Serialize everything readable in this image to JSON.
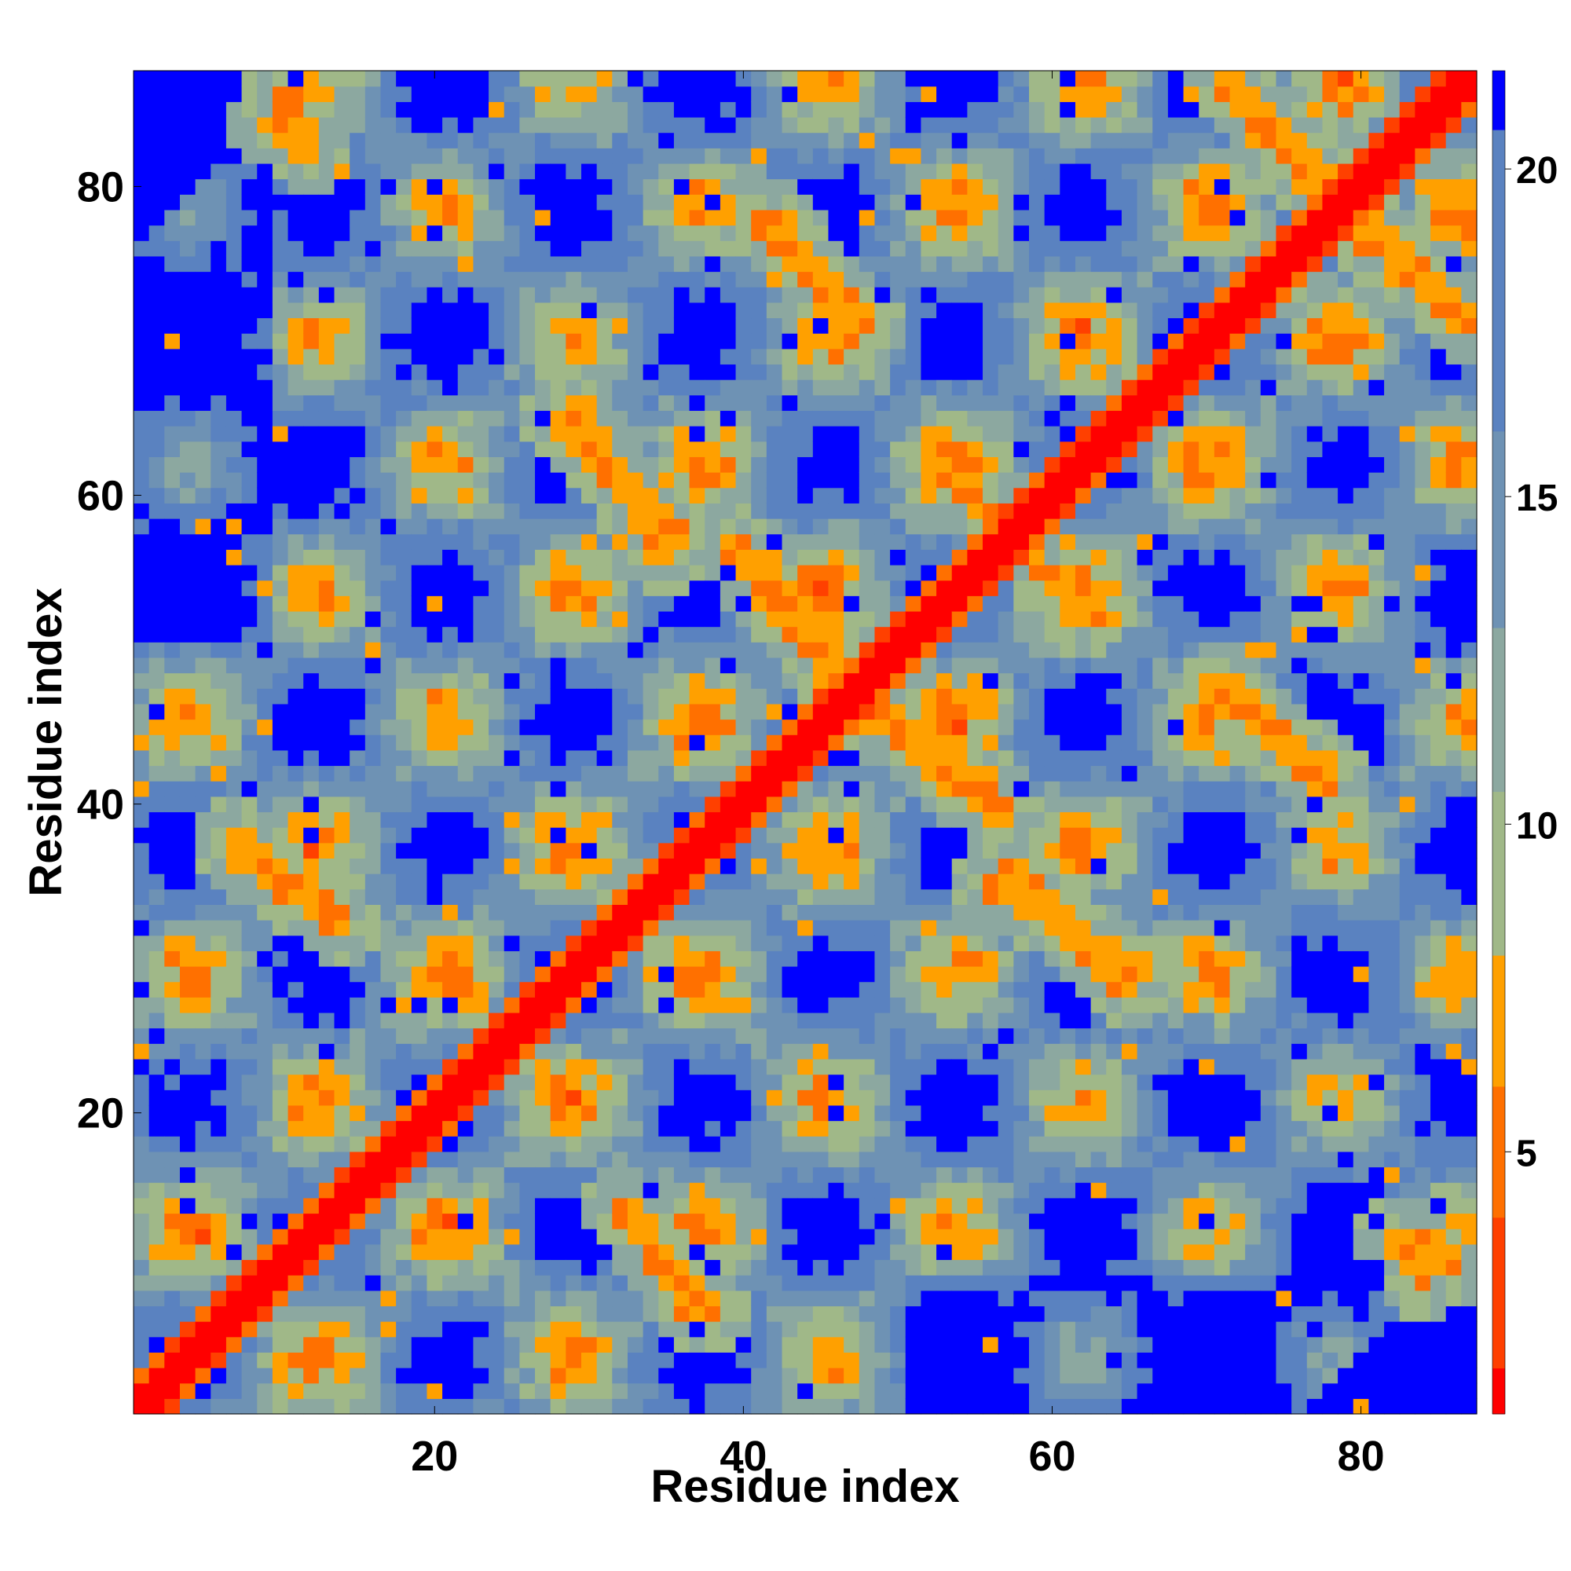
{
  "chart_data": {
    "type": "heatmap",
    "title": "",
    "xlabel": "Residue index",
    "ylabel": "Residue index",
    "n_residues": 87,
    "x_range": [
      1,
      87
    ],
    "y_range": [
      1,
      87
    ],
    "x_ticks": [
      20,
      40,
      60,
      80
    ],
    "y_ticks": [
      20,
      40,
      60,
      80
    ],
    "colorbar": {
      "ticks": [
        5,
        10,
        15,
        20
      ],
      "range": [
        1,
        21.5
      ],
      "colors": [
        "#ff0000",
        "#ff4000",
        "#ff7000",
        "#ffa000",
        "#a0b888",
        "#8ca8a0",
        "#6e92b4",
        "#5a82c0",
        "#0000ff"
      ]
    },
    "background_value": 21,
    "diagonal_value": 1,
    "structure_description": "Contact/distance map: red main diagonal; orange off-diagonal contact stripes; blue (>20) domain-separated regions; green/steel-blue intermediate distances",
    "contact_segments": [
      {
        "from": [
          3,
          0
        ],
        "to": [
          0,
          0
        ],
        "v": 0
      },
      {
        "from": [
          29,
          66
        ],
        "to": [
          35,
          56
        ],
        "v": 6
      },
      {
        "from": [
          33,
          13
        ],
        "to": [
          37,
          7
        ],
        "v": 6
      },
      {
        "from": [
          42,
          78
        ],
        "to": [
          47,
          71
        ],
        "v": 6
      },
      {
        "from": [
          41,
          56
        ],
        "to": [
          47,
          48
        ],
        "v": 6
      },
      {
        "from": [
          48,
          46
        ],
        "to": [
          57,
          39
        ],
        "v": 6
      },
      {
        "from": [
          57,
          36
        ],
        "to": [
          65,
          28
        ],
        "v": 6
      },
      {
        "from": [
          71,
          48
        ],
        "to": [
          78,
          41
        ],
        "v": 6
      },
      {
        "from": [
          71,
          88
        ],
        "to": [
          77,
          80
        ],
        "v": 6
      },
      {
        "from": [
          79,
          79
        ],
        "to": [
          87,
          71
        ],
        "v": 6
      },
      {
        "from": [
          7,
          38
        ],
        "to": [
          14,
          32
        ],
        "v": 6
      },
      {
        "from": [
          9,
          84
        ],
        "to": [
          12,
          83
        ],
        "v": 6
      },
      {
        "from": [
          52,
          62
        ],
        "to": [
          57,
          58
        ],
        "v": 6
      },
      {
        "from": [
          82,
          12
        ],
        "to": [
          86,
          10
        ],
        "v": 6
      }
    ]
  }
}
